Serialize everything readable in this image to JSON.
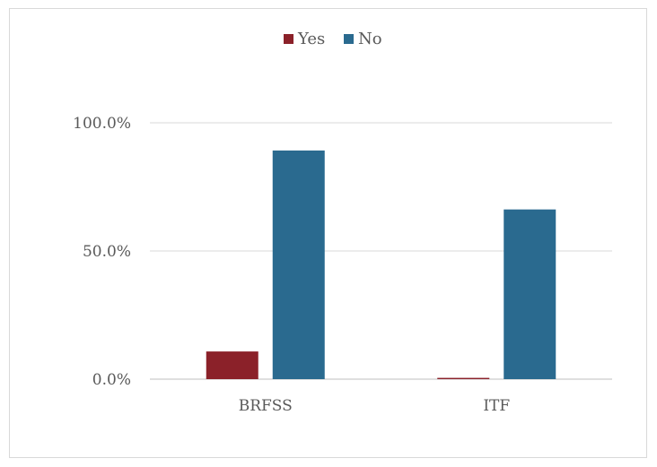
{
  "chart_data": {
    "type": "bar",
    "title": "",
    "xlabel": "",
    "ylabel": "",
    "categories": [
      "BRFSS",
      "ITF"
    ],
    "series": [
      {
        "name": "Yes",
        "values": [
          10.8,
          0.5
        ],
        "color": "#8b2129"
      },
      {
        "name": "No",
        "values": [
          89.2,
          66.2
        ],
        "color": "#2a6a8f"
      }
    ],
    "ylim": [
      0,
      100
    ],
    "yticks": [
      "0.0%",
      "50.0%",
      "100.0%"
    ],
    "ytick_values": [
      0,
      50,
      100
    ],
    "grid": true,
    "legend": "top-center"
  }
}
